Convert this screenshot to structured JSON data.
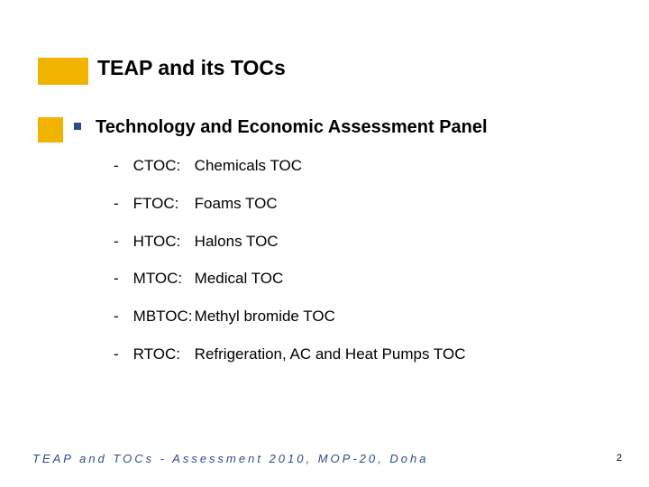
{
  "styling": {
    "accent_color": "#f0b400",
    "bullet_color": "#2f4b8a",
    "footer_color": "#2f4b8a",
    "text_color": "#000000",
    "background_color": "#ffffff",
    "title_fontsize": 23,
    "level1_fontsize": 20,
    "item_fontsize": 17,
    "footer_fontsize": 13,
    "pagenum_fontsize": 11,
    "footer_letter_spacing": 3
  },
  "title": "TEAP and its TOCs",
  "heading": "Technology and Economic Assessment Panel",
  "items": [
    {
      "abbr": "CTOC:",
      "desc": "Chemicals TOC"
    },
    {
      "abbr": "FTOC:",
      "desc": "Foams TOC"
    },
    {
      "abbr": "HTOC:",
      "desc": "Halons TOC"
    },
    {
      "abbr": "MTOC:",
      "desc": "Medical TOC"
    },
    {
      "abbr": "MBTOC:",
      "desc": "Methyl bromide TOC"
    },
    {
      "abbr": "RTOC:",
      "desc": "Refrigeration, AC and Heat Pumps TOC"
    }
  ],
  "footer": "TEAP and TOCs - Assessment 2010, MOP-20, Doha",
  "page_number": "2"
}
